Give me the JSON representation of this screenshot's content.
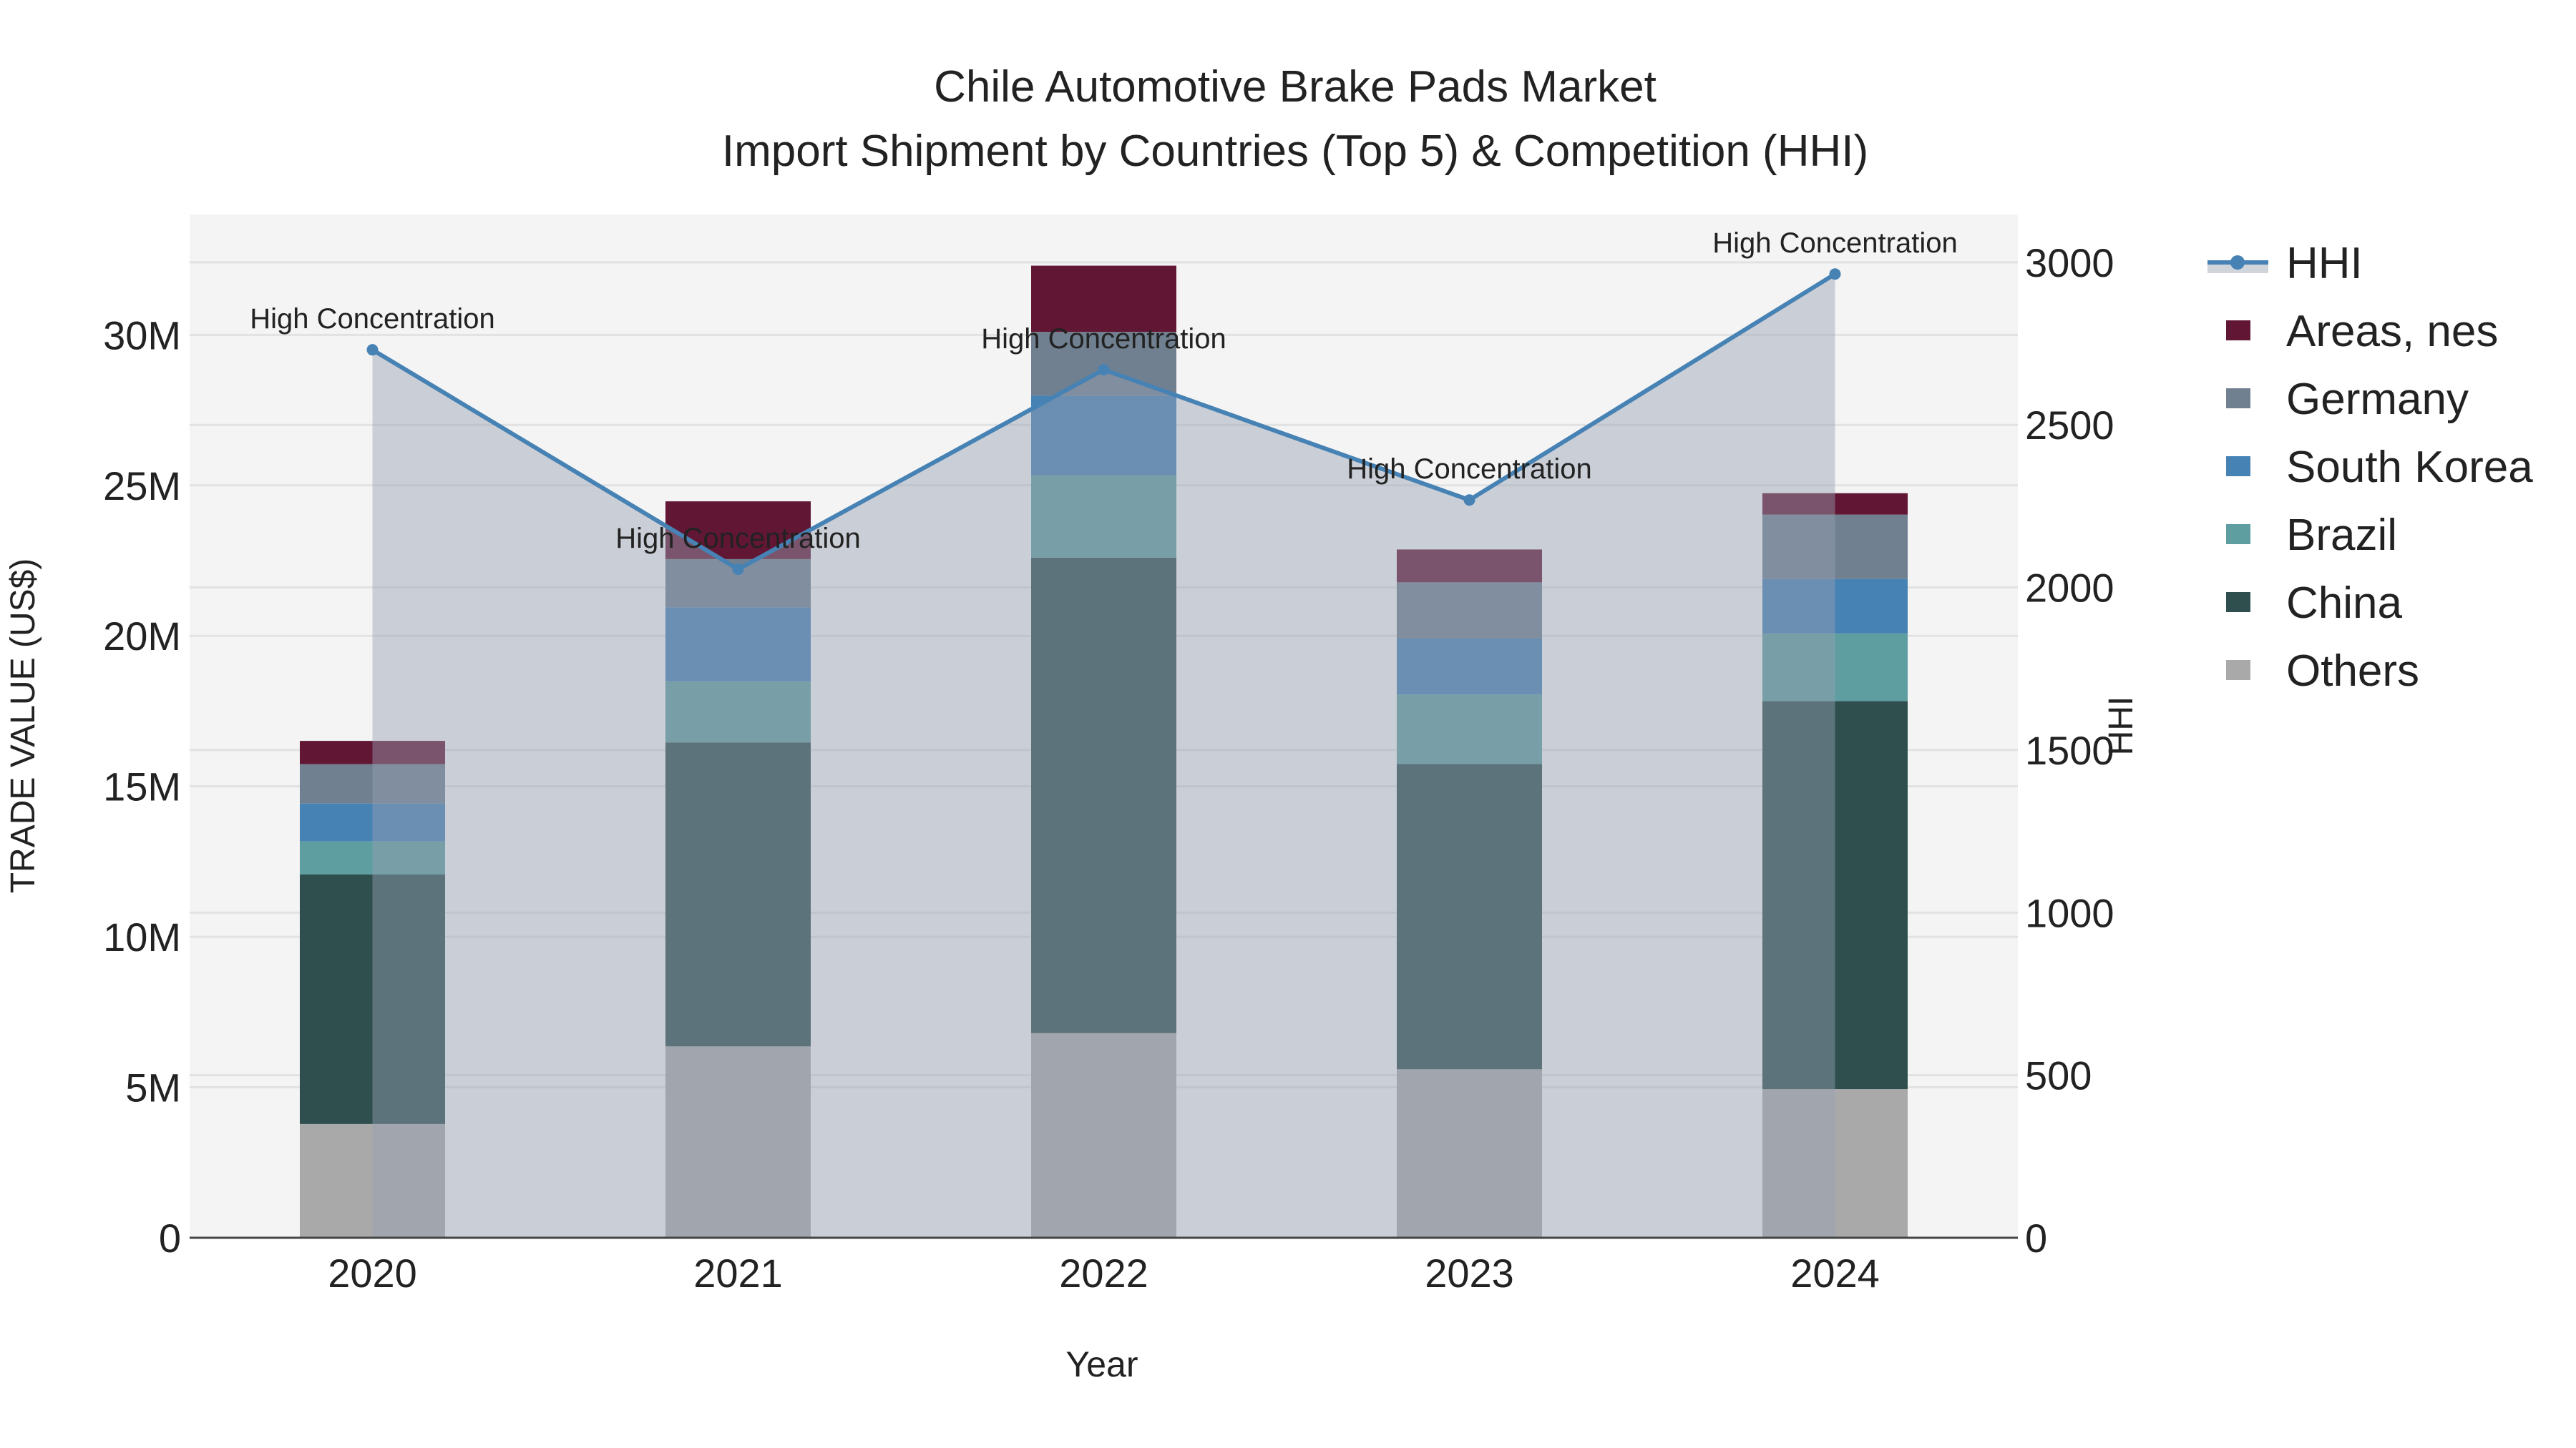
{
  "chart_data": {
    "type": "bar",
    "title": "Chile Automotive Brake Pads Market",
    "subtitle": "Import Shipment by Countries (Top 5) & Competition (HHI)",
    "xlabel": "Year",
    "ylabel": "TRADE VALUE (US$)",
    "y2label": "HHI",
    "categories": [
      "2020",
      "2021",
      "2022",
      "2023",
      "2024"
    ],
    "ylim": [
      0,
      34000000
    ],
    "y2lim": [
      0,
      3147
    ],
    "yticks": [
      0,
      5000000,
      10000000,
      15000000,
      20000000,
      25000000,
      30000000
    ],
    "ytick_labels": [
      "0",
      "5M",
      "10M",
      "15M",
      "20M",
      "25M",
      "30M"
    ],
    "y2ticks": [
      0,
      500,
      1000,
      1500,
      2000,
      2500,
      3000
    ],
    "y2tick_labels": [
      "0",
      "500",
      "1000",
      "1500",
      "2000",
      "2500",
      "3000"
    ],
    "stacked": true,
    "legend_position": "right",
    "series": [
      {
        "name": "Others",
        "color": "#a9a9a9",
        "values": [
          3780000,
          6360000,
          6800000,
          5600000,
          4940000
        ]
      },
      {
        "name": "China",
        "color": "#2f4f4f",
        "values": [
          8290000,
          10100000,
          15800000,
          10140000,
          12890000
        ]
      },
      {
        "name": "Brazil",
        "color": "#5f9ea0",
        "values": [
          1100000,
          2030000,
          2740000,
          2310000,
          2250000
        ]
      },
      {
        "name": "South Korea",
        "color": "#4682b4",
        "values": [
          1260000,
          2460000,
          2640000,
          1860000,
          1810000
        ]
      },
      {
        "name": "Germany",
        "color": "#708090",
        "values": [
          1310000,
          1600000,
          2120000,
          1870000,
          2140000
        ]
      },
      {
        "name": "Areas, nes",
        "color": "#611634",
        "values": [
          770000,
          1920000,
          2200000,
          1090000,
          710000
        ]
      }
    ],
    "line": {
      "name": "HHI",
      "color": "#4682b4",
      "values": [
        2731,
        2056,
        2670,
        2269,
        2964
      ]
    },
    "annotations": [
      "High Concentration",
      "High Concentration",
      "High Concentration",
      "High Concentration",
      "High Concentration"
    ]
  }
}
